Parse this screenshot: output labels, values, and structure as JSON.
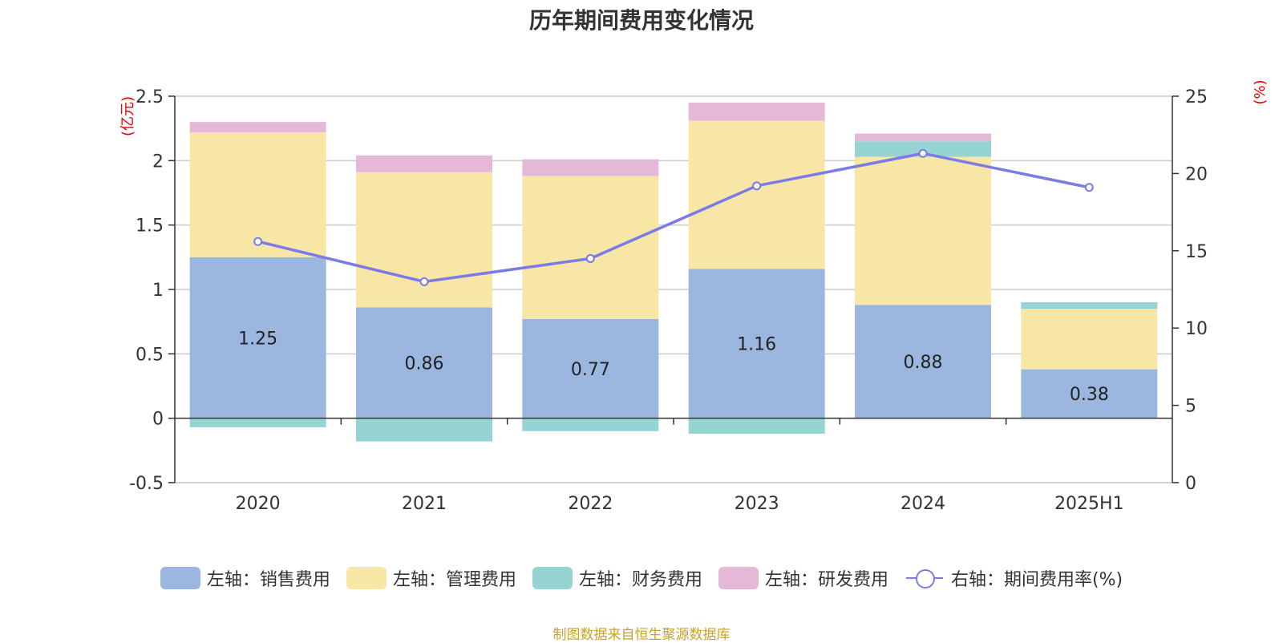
{
  "title": "历年期间费用变化情况",
  "source": "制图数据来自恒生聚源数据库",
  "colors": {
    "sales": "#9bb7e0",
    "admin": "#f7e6a6",
    "finance": "#96d4d4",
    "rd": "#e6b8d8",
    "rate": "#7b7be8",
    "axis_unit": "#e60000"
  },
  "chart_data": {
    "type": "bar",
    "stacked": true,
    "categories": [
      "2020",
      "2021",
      "2022",
      "2023",
      "2024",
      "2025H1"
    ],
    "y_left": {
      "label": "(亿元)",
      "ylim": [
        -0.5,
        2.5
      ],
      "ticks": [
        -0.5,
        0,
        0.5,
        1,
        1.5,
        2,
        2.5
      ],
      "tick_labels": [
        "-0.5",
        "0",
        "0.5",
        "1",
        "1.5",
        "2",
        "2.5"
      ]
    },
    "y_right": {
      "label": "(%)",
      "ylim": [
        0,
        25
      ],
      "ticks": [
        0,
        5,
        10,
        15,
        20,
        25
      ],
      "tick_labels": [
        "0",
        "5",
        "10",
        "15",
        "20",
        "25"
      ]
    },
    "grid": true,
    "legend_position": "bottom",
    "series": [
      {
        "key": "sales",
        "name": "左轴：销售费用",
        "axis": "left",
        "kind": "bar",
        "values": [
          1.25,
          0.86,
          0.77,
          1.16,
          0.88,
          0.38
        ],
        "labels": [
          "1.25",
          "0.86",
          "0.77",
          "1.16",
          "0.88",
          "0.38"
        ]
      },
      {
        "key": "admin",
        "name": "左轴：管理费用",
        "axis": "left",
        "kind": "bar",
        "values": [
          0.97,
          1.05,
          1.11,
          1.15,
          1.15,
          0.47
        ]
      },
      {
        "key": "finance",
        "name": "左轴：财务费用",
        "axis": "left",
        "kind": "bar",
        "values": [
          -0.07,
          -0.18,
          -0.1,
          -0.12,
          0.12,
          0.05
        ]
      },
      {
        "key": "rd",
        "name": "左轴：研发费用",
        "axis": "left",
        "kind": "bar",
        "values": [
          0.08,
          0.13,
          0.13,
          0.14,
          0.06,
          0.0
        ]
      },
      {
        "key": "rate",
        "name": "右轴：期间费用率(%)",
        "axis": "right",
        "kind": "line",
        "values": [
          15.6,
          13.0,
          14.5,
          19.2,
          21.3,
          19.1
        ]
      }
    ]
  }
}
